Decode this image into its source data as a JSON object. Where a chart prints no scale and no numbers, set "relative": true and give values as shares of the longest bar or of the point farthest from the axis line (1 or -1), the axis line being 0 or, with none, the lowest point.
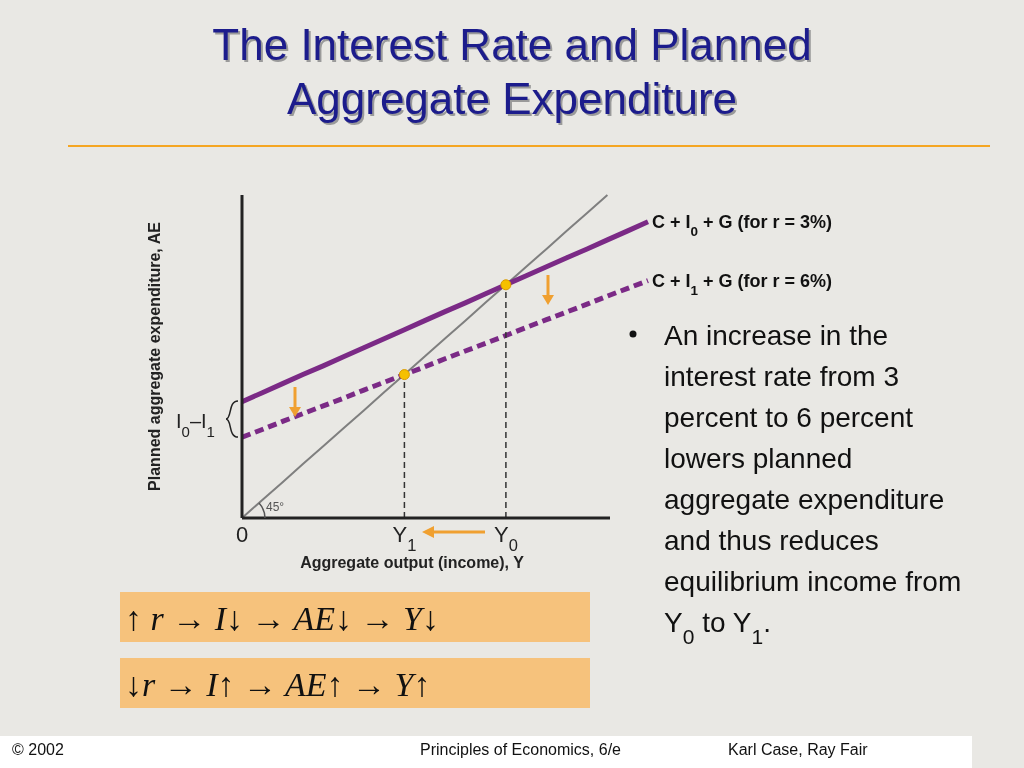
{
  "chart_data": {
    "type": "line",
    "title": "The Interest Rate and Planned Aggregate Expenditure",
    "xlabel": "Aggregate output (income), Y",
    "ylabel": "Planned aggregate expenditure, AE",
    "relative": true,
    "tick_labels": "x",
    "legend": false,
    "categories": [
      "0",
      null,
      null,
      null,
      null,
      null,
      null,
      null,
      "Y$_{1}$",
      null,
      null,
      null,
      null,
      "Y$_{0}$",
      null,
      null,
      null,
      null,
      null,
      null,
      null
    ],
    "series": [
      {
        "color": "#7f7f7f",
        "values": [
          0,
          0.056,
          0.111,
          0.167,
          0.222,
          0.278,
          0.333,
          0.389,
          0.444,
          0.5,
          0.556,
          0.611,
          0.667,
          0.722,
          0.778,
          0.833,
          0.889,
          0.944,
          1,
          null,
          null
        ]
      },
      {
        "name": "C + I$_{0}$ + G (for r = 3%)",
        "color": "#7b2a86",
        "values": [
          0.36,
          0.388,
          0.416,
          0.444,
          0.471,
          0.499,
          0.527,
          0.555,
          0.583,
          0.611,
          0.639,
          0.666,
          0.694,
          0.722,
          0.75,
          0.778,
          0.806,
          0.833,
          0.861,
          0.889,
          0.917
        ]
      },
      {
        "name": "C + I$_{1}$ + G (for r = 6%)",
        "color": "#7b2a86",
        "line_style": "dashed",
        "values": [
          0.25,
          0.274,
          0.299,
          0.323,
          0.347,
          0.371,
          0.396,
          0.42,
          0.444,
          0.468,
          0.493,
          0.517,
          0.541,
          0.565,
          0.59,
          0.614,
          0.638,
          0.662,
          0.687,
          0.711,
          0.735
        ]
      },
      {
        "type": "scatter",
        "color": "#f5c000",
        "marker": "circle",
        "values": [
          null,
          null,
          null,
          null,
          null,
          null,
          null,
          null,
          0.444,
          null,
          null,
          null,
          null,
          0.722,
          null,
          null,
          null,
          null,
          null,
          null,
          null
        ]
      }
    ],
    "annotations": [
      "45°",
      "I$_{0}$–I$_{1}$",
      "An increase in the interest rate from 3 percent to 6 percent lowers planned aggregate expenditure and thus reduces equilibrium income from Y$_{0}$ to Y$_{1}$.",
      "↑ r → I↓ → AE↓ → Y↓",
      "↓r → I↑ → AE↑ → Y↑",
      "© 2002",
      "Principles of Economics, 6/e",
      "Karl Case, Ray Fair"
    ]
  }
}
